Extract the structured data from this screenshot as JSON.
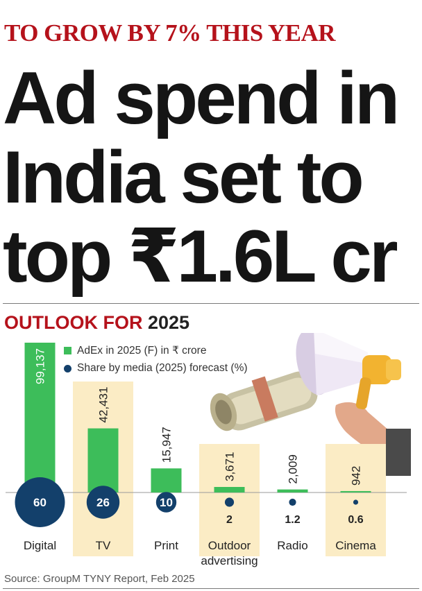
{
  "kicker": "TO GROW BY 7% THIS YEAR",
  "headline": {
    "line1": "Ad spend in",
    "line2": "India set to",
    "line3": "top ₹1.6L cr"
  },
  "subhead": {
    "prefix": "OUTLOOK FOR",
    "year": "2025"
  },
  "legend": {
    "bar_label": "AdEx in 2025 (F) in ₹ crore",
    "dot_label": "Share by media (2025) forecast (%)"
  },
  "source": "Source: GroupM TYNY Report, Feb 2025",
  "colors": {
    "bar": "#3dbd5a",
    "dot": "#13406b",
    "highlight": "#fbecc5",
    "kicker": "#b5121b"
  },
  "chart_data": {
    "type": "bar",
    "categories": [
      "Digital",
      "TV",
      "Print",
      "Outdoor\nadvertising",
      "Radio",
      "Cinema"
    ],
    "series": [
      {
        "name": "AdEx in 2025 (F) in ₹ crore",
        "values": [
          99137,
          42431,
          15947,
          3671,
          2009,
          942
        ]
      },
      {
        "name": "Share by media (2025) forecast (%)",
        "values": [
          60,
          26,
          10,
          2,
          1.2,
          0.6
        ]
      }
    ],
    "bar_value_labels": [
      "99,137",
      "42,431",
      "15,947",
      "3,671",
      "2,009",
      "942"
    ],
    "share_labels": [
      "60",
      "26",
      "10",
      "2",
      "1.2",
      "0.6"
    ],
    "highlighted_columns": [
      "TV",
      "Outdoor\nadvertising",
      "Cinema"
    ]
  }
}
